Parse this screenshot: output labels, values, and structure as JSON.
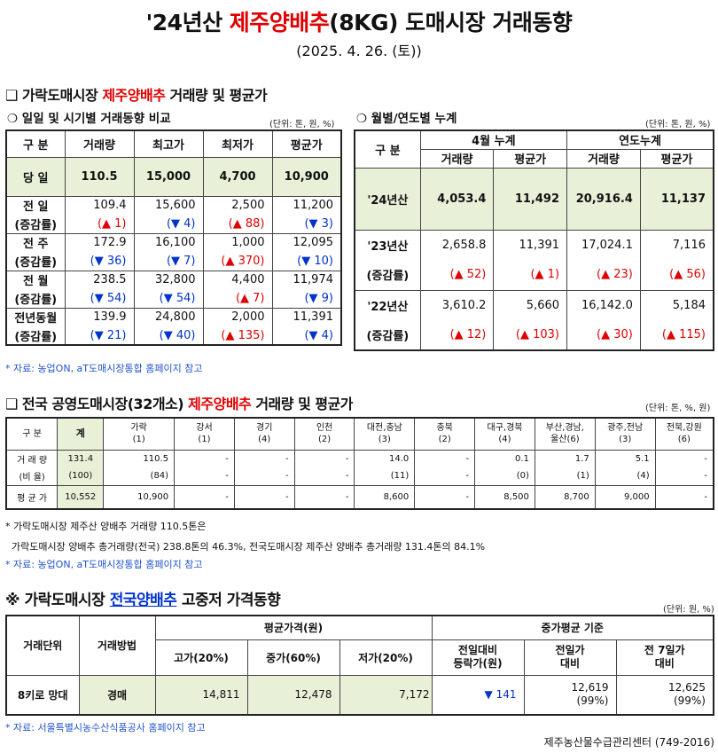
{
  "header": {
    "title_prefix": "'24년산 ",
    "title_red": "제주양배추",
    "title_suffix": "(8KG) 도매시장 거래동향",
    "date": "(2025. 4. 26. (토))"
  },
  "section1": {
    "title_prefix": "❑ 가락도매시장 ",
    "title_red": "제주양배추",
    "title_suffix": " 거래량 및 평균가",
    "left": {
      "subtitle": "❍ 일일 및 시기별 거래동향 비교",
      "unit": "(단위: 톤, 원, %)",
      "headers": [
        "구  분",
        "거래량",
        "최고가",
        "최저가",
        "평균가"
      ],
      "today": {
        "label": "당  일",
        "values": [
          "110.5",
          "15,000",
          "4,700",
          "10,900"
        ]
      },
      "rows": [
        {
          "label": "전  일",
          "sub_label": "(증감률)",
          "values": [
            "109.4",
            "15,600",
            "2,500",
            "11,200"
          ],
          "changes": [
            {
              "text": "(▲ 1)",
              "dir": "up"
            },
            {
              "text": "(▼ 4)",
              "dir": "down"
            },
            {
              "text": "(▲ 88)",
              "dir": "up"
            },
            {
              "text": "(▼ 3)",
              "dir": "down"
            }
          ]
        },
        {
          "label": "전  주",
          "sub_label": "(증감률)",
          "values": [
            "172.9",
            "16,100",
            "1,000",
            "12,095"
          ],
          "changes": [
            {
              "text": "(▼ 36)",
              "dir": "down"
            },
            {
              "text": "(▼ 7)",
              "dir": "down"
            },
            {
              "text": "(▲ 370)",
              "dir": "up"
            },
            {
              "text": "(▼ 10)",
              "dir": "down"
            }
          ]
        },
        {
          "label": "전  월",
          "sub_label": "(증감률)",
          "values": [
            "238.5",
            "32,800",
            "4,400",
            "11,974"
          ],
          "changes": [
            {
              "text": "(▼ 54)",
              "dir": "down"
            },
            {
              "text": "(▼ 54)",
              "dir": "down"
            },
            {
              "text": "(▲ 7)",
              "dir": "up"
            },
            {
              "text": "(▼ 9)",
              "dir": "down"
            }
          ]
        },
        {
          "label": "전년동월",
          "sub_label": "(증감률)",
          "values": [
            "139.9",
            "24,800",
            "2,000",
            "11,391"
          ],
          "changes": [
            {
              "text": "(▼ 21)",
              "dir": "down"
            },
            {
              "text": "(▼ 40)",
              "dir": "down"
            },
            {
              "text": "(▲ 135)",
              "dir": "up"
            },
            {
              "text": "(▼ 4)",
              "dir": "down"
            }
          ]
        }
      ]
    },
    "right": {
      "subtitle": "❍ 월별/연도별 누계",
      "unit": "(단위: 톤, 원, %)",
      "header_group1": "구  분",
      "header_group2": "4월 누계",
      "header_group3": "연도누계",
      "subheaders": [
        "거래량",
        "평균가",
        "거래량",
        "평균가"
      ],
      "current": {
        "label": "'24년산",
        "values": [
          "4,053.4",
          "11,492",
          "20,916.4",
          "11,137"
        ]
      },
      "rows": [
        {
          "label": "'23년산",
          "sub_label": "(증감률)",
          "values": [
            "2,658.8",
            "11,391",
            "17,024.1",
            "7,116"
          ],
          "changes": [
            "(▲ 52)",
            "(▲ 1)",
            "(▲ 23)",
            "(▲ 56)"
          ]
        },
        {
          "label": "'22년산",
          "sub_label": "(증감률)",
          "values": [
            "3,610.2",
            "5,660",
            "16,142.0",
            "5,184"
          ],
          "changes": [
            "(▲ 12)",
            "(▲ 103)",
            "(▲ 30)",
            "(▲ 115)"
          ]
        }
      ]
    },
    "source": "* 자료: 농업ON, aT도매시장통합 홈페이지 참고"
  },
  "section2": {
    "title_prefix": "❑ 전국 공영도매시장(32개소) ",
    "title_red": "제주양배추",
    "title_suffix": " 거래량 및 평균가",
    "unit": "(단위: 톤, %, 원)",
    "headers": [
      {
        "l1": "구  분",
        "l2": ""
      },
      {
        "l1": "계",
        "l2": ""
      },
      {
        "l1": "가락",
        "l2": "(1)"
      },
      {
        "l1": "강서",
        "l2": "(1)"
      },
      {
        "l1": "경기",
        "l2": "(4)"
      },
      {
        "l1": "인천",
        "l2": "(2)"
      },
      {
        "l1": "대전,충남",
        "l2": "(3)"
      },
      {
        "l1": "충북",
        "l2": "(2)"
      },
      {
        "l1": "대구,경북",
        "l2": "(4)"
      },
      {
        "l1": "부산,경남,",
        "l2": "울산(6)"
      },
      {
        "l1": "광주,전남",
        "l2": "(3)"
      },
      {
        "l1": "전북,강원",
        "l2": "(6)"
      }
    ],
    "volume_label": "거 래 량",
    "volume": [
      "131.4",
      "110.5",
      "-",
      "-",
      "-",
      "14.0",
      "-",
      "0.1",
      "1.7",
      "5.1",
      "-"
    ],
    "ratio_label": "(비 율)",
    "ratio": [
      "(100)",
      "(84)",
      "-",
      "-",
      "-",
      "(11)",
      "-",
      "(0)",
      "(1)",
      "(4)",
      "-"
    ],
    "price_label": "평 균 가",
    "price": [
      "10,552",
      "10,900",
      "-",
      "-",
      "-",
      "8,600",
      "-",
      "8,500",
      "8,700",
      "9,000",
      "-"
    ],
    "note1": "* 가락도매시장 제주산 양배추 거래량 110.5톤은",
    "note2": "  가락도매시장 양배추 총거래량(전국) 238.8톤의 46.3%, 전국도매시장 제주산 양배추 총거래량 131.4톤의 84.1%",
    "source": "* 자료: 농업ON, aT도매시장통합 홈페이지 참고"
  },
  "section3": {
    "title_prefix": "※ 가락도매시장 ",
    "title_blue": "전국양배추",
    "title_suffix": " 고중저 가격동향",
    "unit": "(단위: 원, %)",
    "h_unit": "거래단위",
    "h_method": "거래방법",
    "h_avg": "평균가격(원)",
    "h_high": "고가(20%)",
    "h_mid": "중가(60%)",
    "h_low": "저가(20%)",
    "h_mid_basis": "중가평균 기준",
    "h_prev_day_l1": "전일대비",
    "h_prev_day_l2": "등락가(원)",
    "h_prev_price_l1": "전일가",
    "h_prev_price_l2": "대비",
    "h_week_l1": "전 7일가",
    "h_week_l2": "대비",
    "row": {
      "unit": "8키로 망대",
      "method": "경매",
      "high": "14,811",
      "mid": "12,478",
      "low": "7,172",
      "change": "▼ 141",
      "prev_price": "12,619",
      "prev_pct": "(99%)",
      "week_price": "12,625",
      "week_pct": "(99%)"
    },
    "source": "* 자료: 서울특별시농수산식품공사 홈페이지 참고"
  },
  "footer": "제주농산물수급관리센터 (749-2016)"
}
